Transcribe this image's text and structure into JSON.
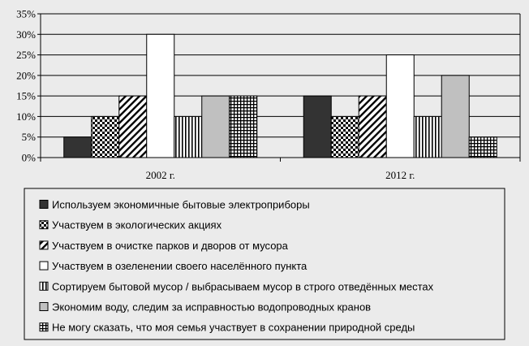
{
  "chart_data": {
    "type": "bar",
    "categories": [
      "2002 г.",
      "2012 г."
    ],
    "y_ticks": [
      "0%",
      "5%",
      "10%",
      "15%",
      "20%",
      "25%",
      "30%",
      "35%"
    ],
    "ylim": [
      0,
      35
    ],
    "grid": true,
    "legend_position": "bottom",
    "series": [
      {
        "name": "Используем экономичные бытовые электроприборы",
        "values": [
          5,
          15
        ],
        "pattern": "solid-dark",
        "color": "#333333"
      },
      {
        "name": "Участвуем в экологических акциях",
        "values": [
          10,
          10
        ],
        "pattern": "checker",
        "color": "#000000"
      },
      {
        "name": "Участвуем в очистке парков и дворов от мусора",
        "values": [
          15,
          15
        ],
        "pattern": "diagonal",
        "color": "#000000"
      },
      {
        "name": "Участвуем в озеленении своего населённого пункта",
        "values": [
          30,
          25
        ],
        "pattern": "white",
        "color": "#ffffff"
      },
      {
        "name": "Сортируем бытовой мусор / выбрасываем мусор в строго отведённых местах",
        "values": [
          10,
          10
        ],
        "pattern": "vertical",
        "color": "#000000"
      },
      {
        "name": "Экономим воду, следим за исправностью водопроводных кранов",
        "values": [
          15,
          20
        ],
        "pattern": "solid-light",
        "color": "#c0c0c0"
      },
      {
        "name": "Не могу сказать, что моя семья участвует в сохранении природной среды",
        "values": [
          15,
          5
        ],
        "pattern": "grid",
        "color": "#000000"
      }
    ]
  }
}
